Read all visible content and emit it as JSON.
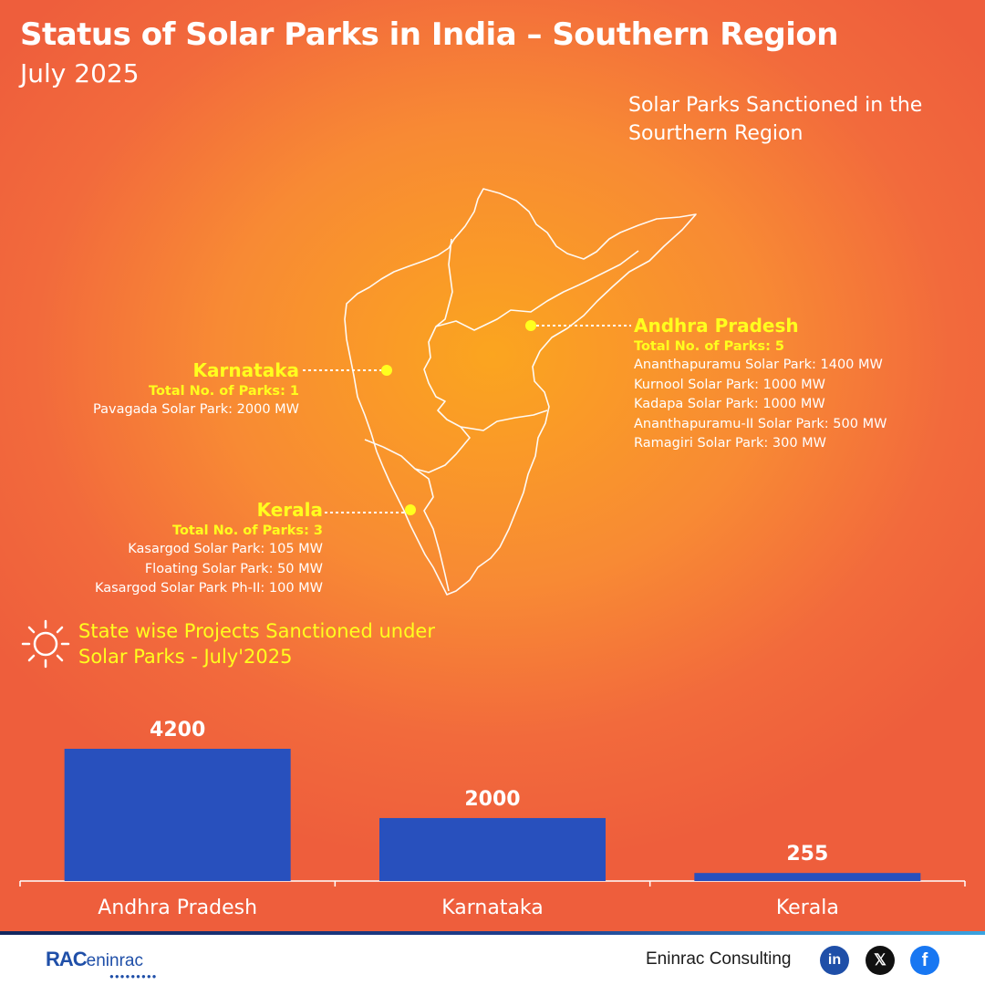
{
  "header": {
    "title": "Status of Solar Parks in India – Southern Region",
    "subtitle": "July 2025"
  },
  "map": {
    "heading": "Solar Parks Sanctioned in the Sourthern Region",
    "states": [
      {
        "name": "Andhra Pradesh",
        "total": "Total No. of Parks: 5",
        "parks": [
          "Ananthapuramu Solar Park: 1400 MW",
          "Kurnool Solar Park: 1000 MW",
          "Kadapa Solar Park: 1000 MW",
          "Ananthapuramu-II Solar Park: 500 MW",
          "Ramagiri Solar Park: 300 MW"
        ]
      },
      {
        "name": "Karnataka",
        "total": "Total No. of Parks: 1",
        "parks": [
          "Pavagada Solar Park: 2000 MW"
        ]
      },
      {
        "name": "Kerala",
        "total": "Total No. of Parks: 3",
        "parks": [
          "Kasargod Solar Park: 105 MW",
          "Floating Solar Park: 50 MW",
          "Kasargod Solar Park Ph-II: 100 MW"
        ]
      }
    ],
    "colors": {
      "highlight": "#ffff1e",
      "outline": "#ffffff"
    }
  },
  "chart_heading": "State wise Projects Sanctioned under Solar Parks - July'2025",
  "chart_data": {
    "type": "bar",
    "title": "State wise Projects Sanctioned under Solar Parks - July'2025",
    "categories": [
      "Andhra Pradesh",
      "Karnataka",
      "Kerala"
    ],
    "values": [
      4200,
      2000,
      255
    ],
    "xlabel": "",
    "ylabel": "",
    "ylim": [
      0,
      4200
    ],
    "grid": false,
    "bar_color": "#2850bd"
  },
  "footer": {
    "logo_text": "RAC eninrac",
    "brand": "Eninrac Consulting",
    "social": [
      "linkedin-icon",
      "x-icon",
      "facebook-icon"
    ]
  }
}
